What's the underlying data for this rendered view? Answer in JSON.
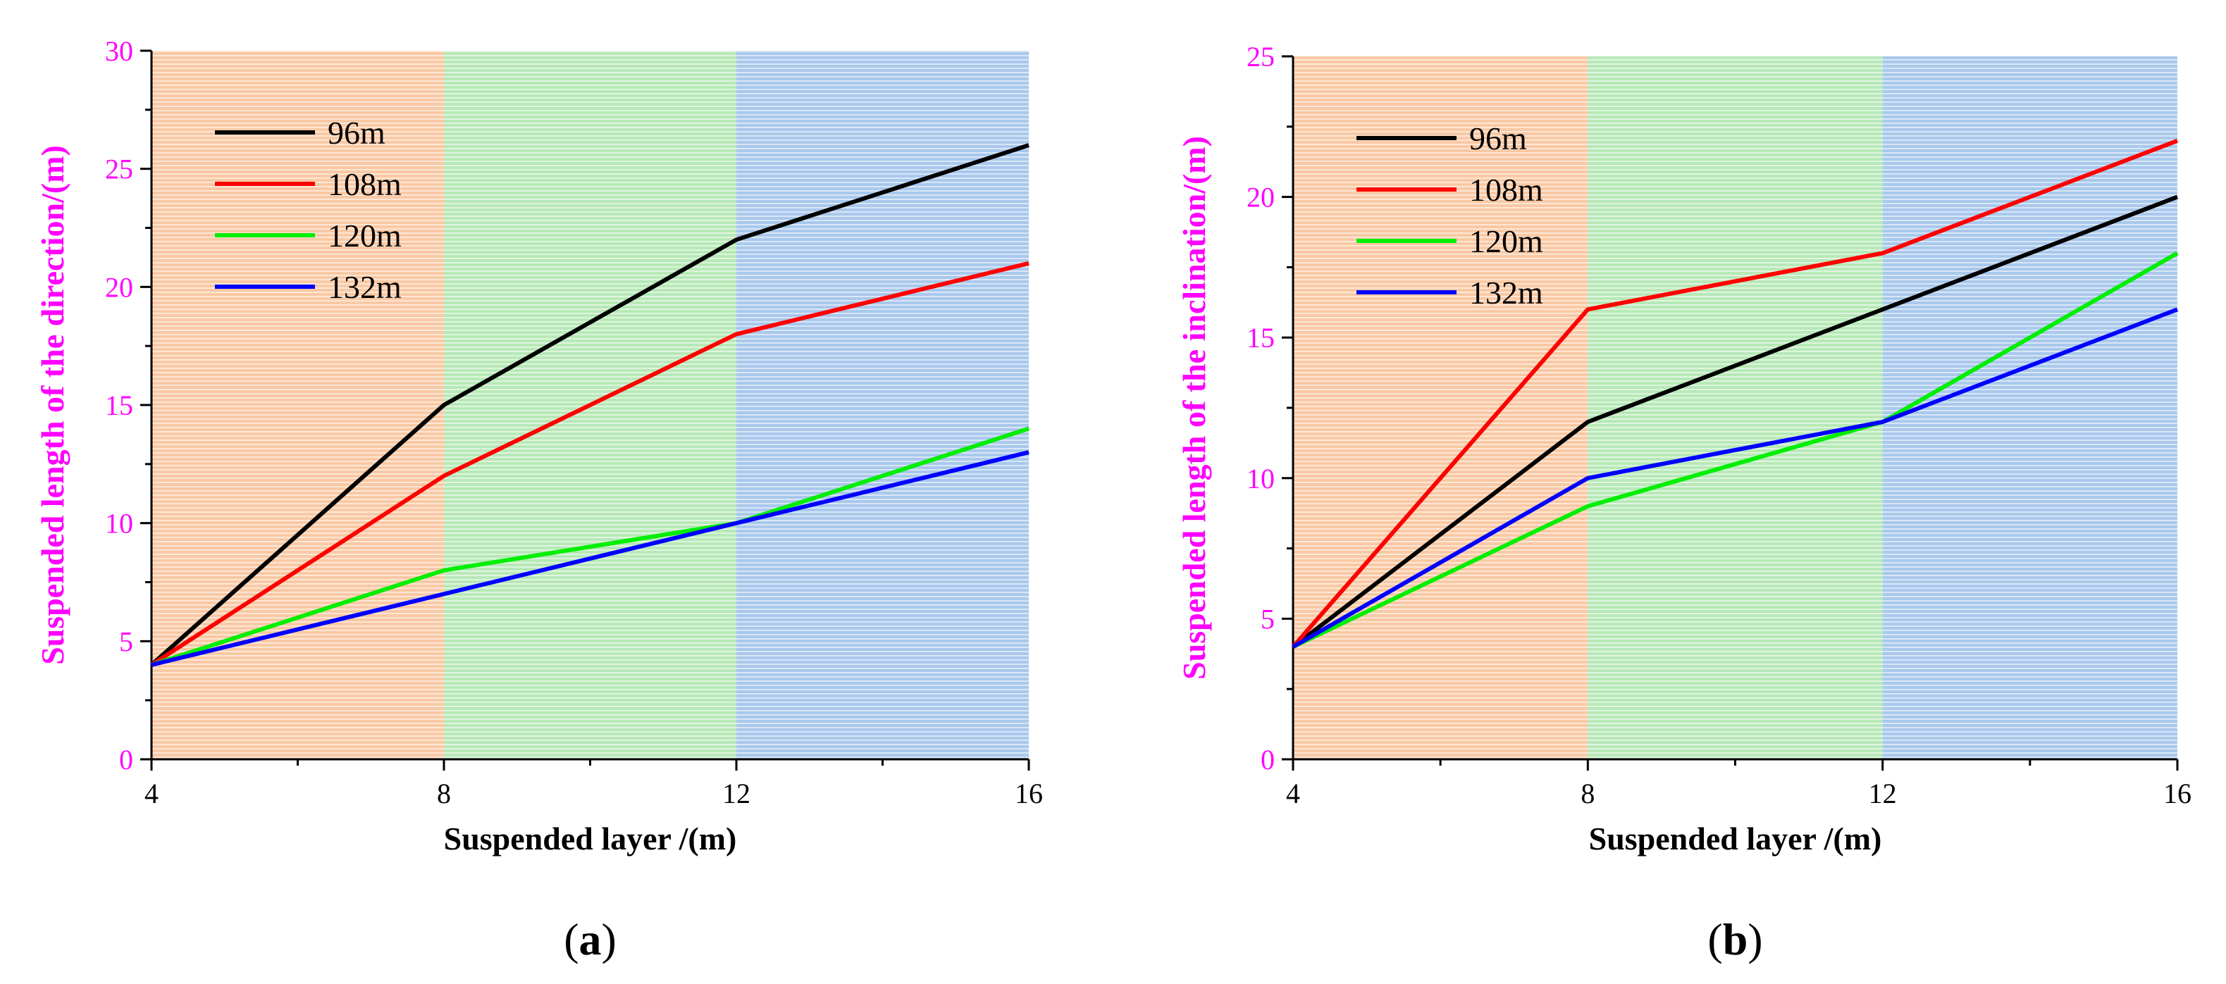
{
  "chart_data": [
    {
      "type": "line",
      "panel_label": "a",
      "xlabel": "Suspended layer /(m)",
      "ylabel": "Suspended length of the direction/(m)",
      "xlim": [
        4,
        16
      ],
      "ylim": [
        0,
        30
      ],
      "xticks": [
        4,
        8,
        12,
        16
      ],
      "yticks": [
        0,
        5,
        10,
        15,
        20,
        25,
        30
      ],
      "x": [
        4,
        8,
        12,
        16
      ],
      "bands": [
        {
          "from": 4,
          "to": 8,
          "color": "#f9c9a4"
        },
        {
          "from": 8,
          "to": 12,
          "color": "#b7e9b7"
        },
        {
          "from": 12,
          "to": 16,
          "color": "#a9c8ec"
        }
      ],
      "legend_position": "top-left",
      "series": [
        {
          "name": "96m",
          "color": "#000000",
          "values": [
            4,
            15,
            22,
            26
          ]
        },
        {
          "name": "108m",
          "color": "#ff0000",
          "values": [
            4,
            12,
            18,
            21
          ]
        },
        {
          "name": "120m",
          "color": "#00ee00",
          "values": [
            4,
            8,
            10,
            14
          ]
        },
        {
          "name": "132m",
          "color": "#0000ff",
          "values": [
            4,
            7,
            10,
            13
          ]
        }
      ]
    },
    {
      "type": "line",
      "panel_label": "b",
      "xlabel": "Suspended layer /(m)",
      "ylabel": "Suspended length of the inclination/(m)",
      "xlim": [
        4,
        16
      ],
      "ylim": [
        0,
        25
      ],
      "xticks": [
        4,
        8,
        12,
        16
      ],
      "yticks": [
        0,
        5,
        10,
        15,
        20,
        25
      ],
      "x": [
        4,
        8,
        12,
        16
      ],
      "bands": [
        {
          "from": 4,
          "to": 8,
          "color": "#f9c9a4"
        },
        {
          "from": 8,
          "to": 12,
          "color": "#b7e9b7"
        },
        {
          "from": 12,
          "to": 16,
          "color": "#a9c8ec"
        }
      ],
      "legend_position": "top-left",
      "series": [
        {
          "name": "96m",
          "color": "#000000",
          "values": [
            4,
            12,
            16,
            20
          ]
        },
        {
          "name": "108m",
          "color": "#ff0000",
          "values": [
            4,
            16,
            18,
            22
          ]
        },
        {
          "name": "120m",
          "color": "#00ee00",
          "values": [
            4,
            9,
            12,
            18
          ]
        },
        {
          "name": "132m",
          "color": "#0000ff",
          "values": [
            4,
            10,
            12,
            16
          ]
        }
      ]
    }
  ]
}
